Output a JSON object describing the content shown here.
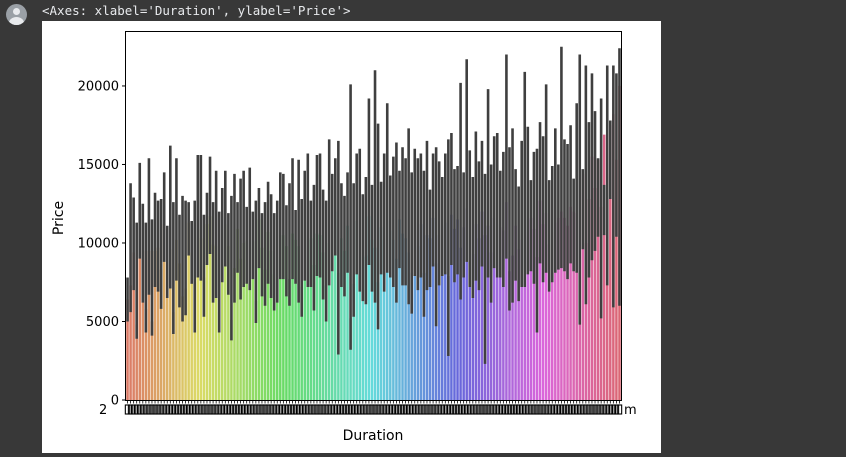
{
  "output": {
    "repr": "<Axes: xlabel='Duration', ylabel='Price'>"
  },
  "icons": {
    "avatar": "user-avatar-icon"
  },
  "chart_data": {
    "type": "bar",
    "xlabel": "Duration",
    "ylabel": "Price",
    "ylim": [
      0,
      23500
    ],
    "yticks": [
      0,
      5000,
      10000,
      15000,
      20000
    ],
    "ytick_labels": [
      "0",
      "5000",
      "10000",
      "15000",
      "20000"
    ],
    "has_error_bars": true,
    "error_bar_color": "#3f3f3f",
    "palette": "husl (seaborn default), one hue per category",
    "category_count": 162,
    "first_tick_label_fragment": "2",
    "last_tick_label_fragment": "m",
    "values": [
      6400,
      7300,
      9400,
      4800,
      11100,
      9500,
      5800,
      9500,
      5000,
      9500,
      9700,
      8300,
      11200,
      7800,
      9600,
      5600,
      10200,
      8700,
      6600,
      7100,
      11300,
      9400,
      5600,
      10900,
      10300,
      7800,
      11200,
      11700,
      9900,
      9800,
      5600,
      10600,
      11200,
      9800,
      5100,
      8400,
      10900,
      9000,
      10000,
      10100,
      9700,
      10100,
      6300,
      11500,
      9700,
      8300,
      10700,
      9500,
      8000,
      9100,
      10500,
      10500,
      9800,
      7700,
      10600,
      10200,
      9800,
      7200,
      10500,
      10200,
      10300,
      8600,
      10600,
      10500,
      9400,
      7300,
      10000,
      10800,
      12000,
      8100,
      10300,
      9500,
      11100,
      5200,
      7400,
      11400,
      10100,
      9100,
      9200,
      11700,
      10200,
      9700,
      7500,
      11000,
      10200,
      11400,
      10800,
      10200,
      9000,
      11500,
      10600,
      10300,
      9400,
      8100,
      11300,
      9800,
      11200,
      8100,
      10500,
      10300,
      11600,
      8700,
      10500,
      11100,
      11300,
      7900,
      11800,
      10900,
      11500,
      9700,
      11000,
      12200,
      10500,
      9300,
      11200,
      10300,
      12000,
      10500,
      11100,
      9400,
      11600,
      11200,
      11000,
      10800,
      12600,
      8200,
      9200,
      11100,
      9600,
      10200,
      10700,
      11500,
      11600,
      10900,
      9100,
      12700,
      11200,
      11900,
      9900,
      10700,
      11300,
      11600,
      12000,
      11600,
      11100,
      12300,
      12000,
      11900,
      13200,
      14400,
      10000,
      12800,
      15500,
      13500,
      15300,
      12300,
      16900,
      14400,
      17500,
      18200,
      15300,
      20000
    ],
    "error_low": [
      5000,
      5600,
      7000,
      3900,
      9000,
      6200,
      4300,
      6700,
      4100,
      7200,
      6900,
      5800,
      8800,
      6500,
      7100,
      4200,
      7600,
      5900,
      5000,
      5400,
      9200,
      7400,
      4300,
      7800,
      7600,
      5300,
      8600,
      9300,
      6200,
      6500,
      4300,
      7500,
      8500,
      6700,
      3800,
      6200,
      8100,
      6400,
      7200,
      7400,
      7000,
      7700,
      4900,
      8400,
      6600,
      6000,
      7400,
      6500,
      5700,
      6200,
      7700,
      7700,
      6600,
      6000,
      7700,
      7400,
      6200,
      5300,
      7600,
      7200,
      7200,
      5700,
      7900,
      7800,
      6400,
      5000,
      7300,
      8200,
      9200,
      2900,
      7200,
      6600,
      8100,
      3200,
      5300,
      8000,
      6900,
      6300,
      6100,
      8600,
      6900,
      6200,
      4500,
      8000,
      6900,
      8100,
      7800,
      7200,
      6200,
      8400,
      7300,
      7300,
      6100,
      5500,
      7900,
      7000,
      7800,
      5300,
      7000,
      7200,
      8500,
      4700,
      7300,
      7900,
      8000,
      2800,
      8600,
      7500,
      8000,
      6400,
      7800,
      8800,
      7200,
      6500,
      7600,
      7000,
      8500,
      2300,
      7800,
      6200,
      8400,
      7800,
      7800,
      7200,
      9000,
      5700,
      6200,
      7600,
      6300,
      7200,
      7200,
      8000,
      8200,
      7400,
      4300,
      8700,
      7500,
      8100,
      6900,
      7500,
      8100,
      8300,
      8400,
      8200,
      7700,
      8700,
      8200,
      8100,
      4800,
      9600,
      6100,
      7800,
      8900,
      9500,
      10400,
      5200,
      10500,
      7300,
      12800,
      5900,
      10400,
      6000
    ],
    "error_high": [
      7800,
      13800,
      12900,
      11300,
      15100,
      12500,
      11300,
      15400,
      11500,
      13200,
      12700,
      12800,
      14500,
      11100,
      16200,
      12600,
      15400,
      11800,
      13000,
      12700,
      12600,
      11400,
      12700,
      15600,
      15600,
      11800,
      13200,
      15500,
      12600,
      14600,
      12000,
      13500,
      14600,
      11900,
      13000,
      14400,
      12600,
      14100,
      14600,
      12300,
      14800,
      12000,
      12700,
      13500,
      11900,
      12600,
      13900,
      13100,
      11900,
      12700,
      14500,
      14400,
      12400,
      13800,
      15400,
      12100,
      15300,
      12800,
      14600,
      15700,
      12700,
      13700,
      15600,
      15700,
      13400,
      12700,
      16600,
      14400,
      15400,
      16500,
      13800,
      13000,
      14500,
      20100,
      13800,
      15700,
      16000,
      13100,
      14200,
      19200,
      13700,
      21000,
      17600,
      13900,
      15700,
      18900,
      14300,
      15500,
      16400,
      14600,
      16100,
      15400,
      17300,
      14500,
      16000,
      15400,
      15700,
      14600,
      16500,
      13400,
      15700,
      16100,
      15200,
      14200,
      15700,
      16600,
      17000,
      14700,
      14900,
      20200,
      14500,
      21700,
      15900,
      14200,
      17100,
      15200,
      16500,
      14400,
      19800,
      15000,
      16800,
      17000,
      14600,
      15800,
      22000,
      16100,
      17300,
      14700,
      13600,
      16500,
      20900,
      17400,
      14000,
      15800,
      16000,
      17700,
      16800,
      20100,
      14000,
      14900,
      17300,
      15000,
      22500,
      16600,
      16300,
      17500,
      14100,
      18900,
      22000,
      14700,
      21300,
      17700,
      20800,
      18400,
      15400,
      19200,
      13700,
      21300,
      17800,
      21300,
      20800,
      22400
    ]
  }
}
